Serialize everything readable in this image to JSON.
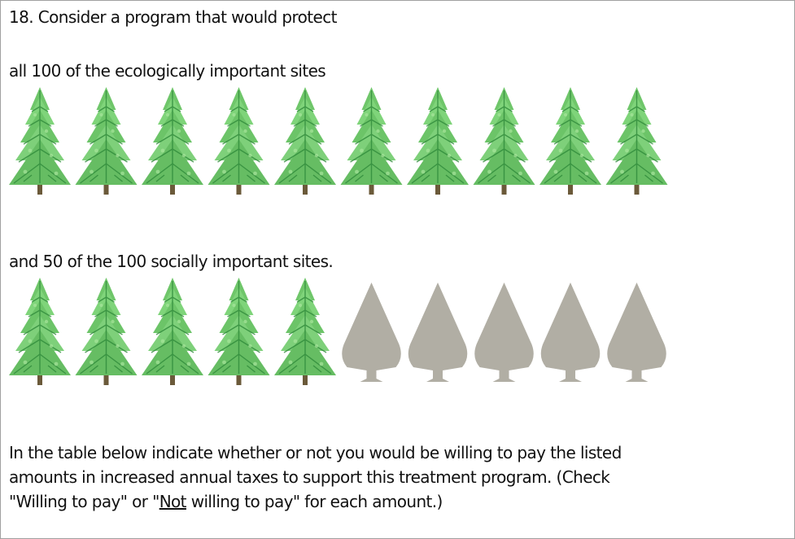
{
  "question": "18. Consider a program that would protect",
  "ecological_text": "all 100 of the ecologically important sites",
  "social_text": "and 50 of the 100 socially important sites.",
  "instruction": {
    "line1": "In the table below indicate whether or not you would be willing to pay the listed",
    "line2": "amounts in increased annual taxes to support this treatment program. (Check",
    "line3_before": "\"Willing to pay\" or \"",
    "line3_underlined": "Not",
    "line3_after": " willing to pay\" for each amount.)"
  }
}
